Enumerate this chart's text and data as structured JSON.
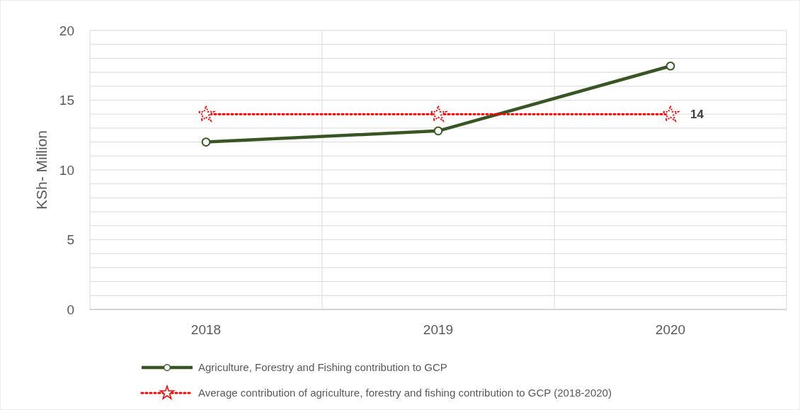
{
  "chart_data": {
    "type": "line",
    "ylabel": "KSh- Million",
    "categories": [
      "2018",
      "2019",
      "2020"
    ],
    "ylim": [
      0,
      20
    ],
    "yticks": [
      0,
      {
        "value": 1,
        "label": null
      },
      {
        "value": 2,
        "label": null
      },
      {
        "value": 3,
        "label": null
      },
      {
        "value": 4,
        "label": null
      },
      5,
      {
        "value": 6,
        "label": null
      },
      {
        "value": 7,
        "label": null
      },
      {
        "value": 8,
        "label": null
      },
      {
        "value": 9,
        "label": null
      },
      10,
      {
        "value": 11,
        "label": null
      },
      {
        "value": 12,
        "label": null
      },
      {
        "value": 13,
        "label": null
      },
      {
        "value": 14,
        "label": null
      },
      15,
      {
        "value": 16,
        "label": null
      },
      {
        "value": 17,
        "label": null
      },
      {
        "value": 18,
        "label": null
      },
      {
        "value": 19,
        "label": null
      },
      20
    ],
    "grid": true,
    "legend": "bottom",
    "series": [
      {
        "name": "Agriculture, Forestry and Fishing contribution to GCP",
        "color": "#375623",
        "values": [
          12.0,
          12.8,
          17.45
        ],
        "marker": "circle",
        "line_style": "solid"
      },
      {
        "name": "Average contribution of agriculture, forestry and fishing contribution to GCP (2018-2020)",
        "color": "#ff0000",
        "values": [
          14,
          14,
          14
        ],
        "marker": "star",
        "line_style": "dotted",
        "value_labels": [
          null,
          null,
          "14"
        ]
      }
    ]
  }
}
